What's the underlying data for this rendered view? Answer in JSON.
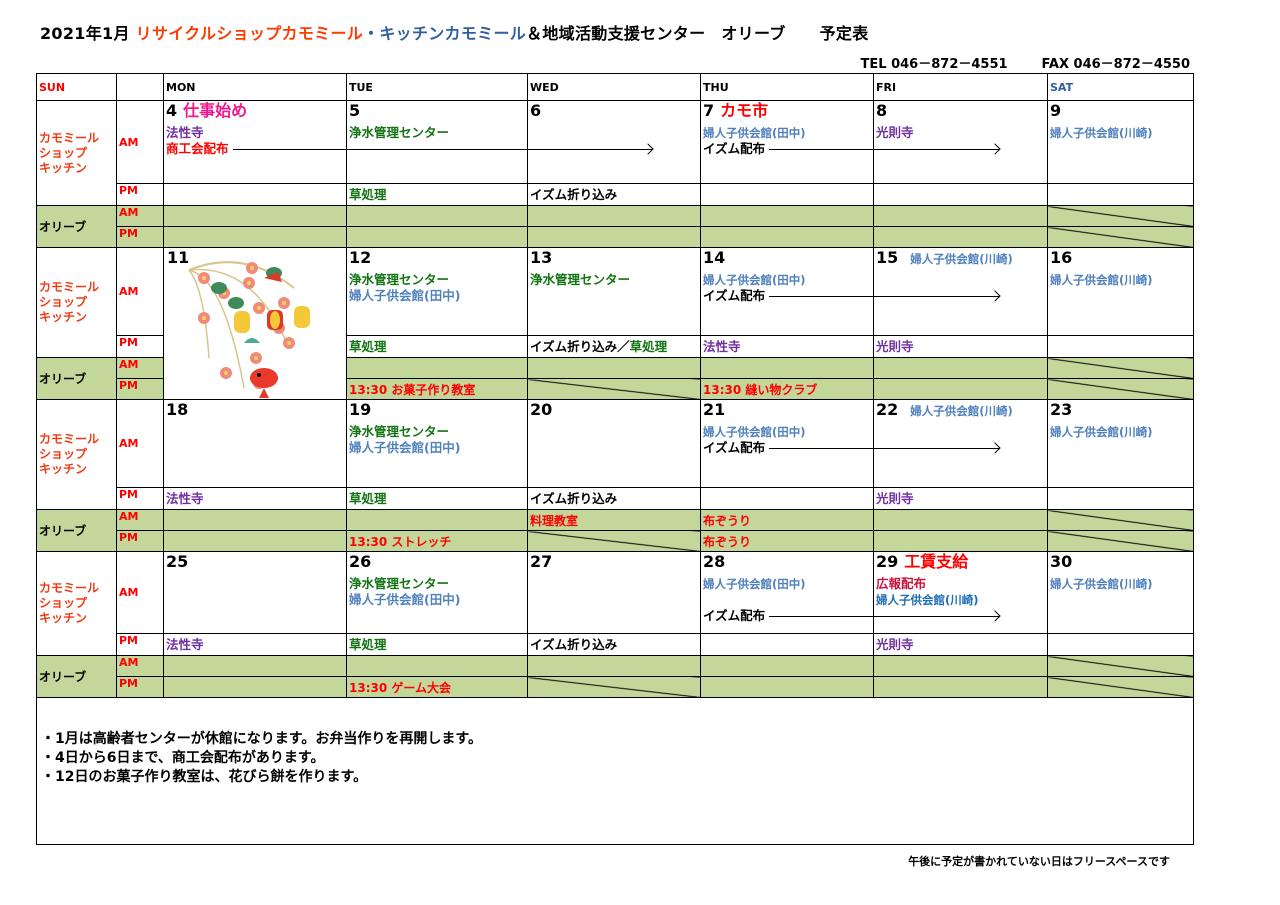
{
  "header": {
    "title_parts": [
      "2021年1月 ",
      "リサイクルショップカモミール",
      "・キッチンカモミール",
      "＆地域活動支援センター",
      "オリーブ",
      "予定表"
    ],
    "tel": "TEL  046－872－4551",
    "fax": "FAX  046－872－4550"
  },
  "colors": {
    "red": "#ff0000",
    "pink": "#f0198c",
    "green": "#137313",
    "blue": "#4f81bd",
    "blue_dark": "#1f6fb4",
    "purple": "#7030a0",
    "crimson": "#c8143c",
    "black": "#000000",
    "olive_bg": "#c4d79b",
    "sat_header": "#2f5f9f"
  },
  "columns": [
    "SUN",
    "",
    "MON",
    "TUE",
    "WED",
    "THU",
    "FRI",
    "SAT"
  ],
  "row_labels": {
    "shop": [
      "カモミール",
      "ショップ",
      "キッチン"
    ],
    "olive": "オリーブ",
    "am": "AM",
    "pm": "PM"
  },
  "decoration": "new-year-hanging-ornament-image",
  "weeks": [
    {
      "days": [
        {
          "date": "4",
          "title": "仕事始め",
          "title_color": "#f0198c",
          "title_size": "big",
          "am": [
            [
              {
                "t": "法性寺",
                "c": "#7030a0"
              }
            ],
            [
              {
                "t": "商工会配布",
                "c": "#ff0000",
                "arrow_until": "WED"
              }
            ]
          ],
          "pm": [],
          "olive_am": null,
          "olive_pm": null
        },
        {
          "date": "5",
          "am": [
            [
              {
                "t": "浄水管理センター",
                "c": "#137313"
              }
            ]
          ],
          "pm": [
            [
              {
                "t": "草処理",
                "c": "#137313"
              }
            ]
          ],
          "olive_am": null,
          "olive_pm": null
        },
        {
          "date": "6",
          "am": [],
          "pm": [
            [
              {
                "t": "イズム折り込み",
                "c": "#000000"
              }
            ]
          ],
          "olive_am": null,
          "olive_pm": null
        },
        {
          "date": "7",
          "title": "カモ市",
          "title_color": "#ff0000",
          "title_size": "big",
          "am": [
            [
              {
                "t": "婦人子供会館(田中)",
                "c": "#4f81bd",
                "small": true
              }
            ],
            [
              {
                "t": "イズム配布",
                "c": "#000000",
                "arrow_until": "FRI"
              }
            ]
          ],
          "pm": [],
          "olive_am": null,
          "olive_pm": null
        },
        {
          "date": "8",
          "am": [
            [
              {
                "t": "光則寺",
                "c": "#7030a0"
              }
            ]
          ],
          "pm": [],
          "olive_am": null,
          "olive_pm": null
        },
        {
          "date": "9",
          "am": [
            [
              {
                "t": "婦人子供会館(川崎)",
                "c": "#4f81bd",
                "small": true
              }
            ]
          ],
          "pm": [],
          "olive_am": null,
          "olive_pm": null,
          "olive_am_struck": true,
          "olive_pm_struck": true
        }
      ]
    },
    {
      "image_monday": true,
      "days": [
        {
          "date": "11",
          "am": [],
          "pm": []
        },
        {
          "date": "12",
          "am": [
            [
              {
                "t": "浄水管理センター",
                "c": "#137313"
              }
            ],
            [
              {
                "t": "婦人子供会館(田中)",
                "c": "#4f81bd"
              }
            ]
          ],
          "pm": [
            [
              {
                "t": "草処理",
                "c": "#137313"
              }
            ]
          ],
          "olive_am": null,
          "olive_pm": {
            "t": "13:30  お菓子作り教室",
            "c": "#ff0000"
          }
        },
        {
          "date": "13",
          "am": [
            [
              {
                "t": "浄水管理センター",
                "c": "#137313"
              }
            ]
          ],
          "pm": [
            [
              {
                "t": "イズム折り込み／",
                "c": "#000000"
              },
              {
                "t": "草処理",
                "c": "#137313"
              }
            ]
          ],
          "olive_am": null,
          "olive_pm": null,
          "olive_pm_struck": true
        },
        {
          "date": "14",
          "am": [
            [
              {
                "t": "婦人子供会館(田中)",
                "c": "#4f81bd",
                "small": true
              }
            ],
            [
              {
                "t": "イズム配布",
                "c": "#000000",
                "arrow_until": "FRI"
              }
            ]
          ],
          "pm": [
            [
              {
                "t": "法性寺",
                "c": "#7030a0"
              }
            ]
          ],
          "olive_am": null,
          "olive_pm": {
            "t": "13:30  縫い物クラブ",
            "c": "#ff0000"
          }
        },
        {
          "date": "15",
          "title": "婦人子供会館(川崎)",
          "title_color": "#4f81bd",
          "title_size": "small",
          "am": [],
          "pm": [
            [
              {
                "t": "光則寺",
                "c": "#7030a0"
              }
            ]
          ],
          "olive_am": null,
          "olive_pm": null
        },
        {
          "date": "16",
          "am": [
            [
              {
                "t": "婦人子供会館(川崎)",
                "c": "#4f81bd",
                "small": true
              }
            ]
          ],
          "pm": [],
          "olive_am": null,
          "olive_pm": null,
          "olive_am_struck": true,
          "olive_pm_struck": true
        }
      ]
    },
    {
      "days": [
        {
          "date": "18",
          "am": [],
          "pm": [
            [
              {
                "t": "法性寺",
                "c": "#7030a0"
              }
            ]
          ],
          "olive_am": null,
          "olive_pm": null
        },
        {
          "date": "19",
          "am": [
            [
              {
                "t": "浄水管理センター",
                "c": "#137313"
              }
            ],
            [
              {
                "t": "婦人子供会館(田中)",
                "c": "#4f81bd"
              }
            ]
          ],
          "pm": [
            [
              {
                "t": "草処理",
                "c": "#137313"
              }
            ]
          ],
          "olive_am": null,
          "olive_pm": {
            "t": "13:30  ストレッチ",
            "c": "#ff0000"
          }
        },
        {
          "date": "20",
          "am": [],
          "pm": [
            [
              {
                "t": "イズム折り込み",
                "c": "#000000"
              }
            ]
          ],
          "olive_am": {
            "t": "料理教室",
            "c": "#ff0000"
          },
          "olive_pm": null,
          "olive_pm_struck": true
        },
        {
          "date": "21",
          "am": [
            [
              {
                "t": "婦人子供会館(田中)",
                "c": "#4f81bd",
                "small": true
              }
            ],
            [
              {
                "t": "イズム配布",
                "c": "#000000",
                "arrow_until": "FRI"
              }
            ]
          ],
          "pm": [],
          "olive_am": {
            "t": "布ぞうり",
            "c": "#ff0000"
          },
          "olive_pm": {
            "t": "布ぞうり",
            "c": "#ff0000"
          }
        },
        {
          "date": "22",
          "title": "婦人子供会館(川崎)",
          "title_color": "#4f81bd",
          "title_size": "small",
          "am": [],
          "pm": [
            [
              {
                "t": "光則寺",
                "c": "#7030a0"
              }
            ]
          ],
          "olive_am": null,
          "olive_pm": null
        },
        {
          "date": "23",
          "am": [
            [
              {
                "t": "婦人子供会館(川崎)",
                "c": "#4f81bd",
                "small": true
              }
            ]
          ],
          "pm": [],
          "olive_am": null,
          "olive_pm": null,
          "olive_am_struck": true,
          "olive_pm_struck": true
        }
      ]
    },
    {
      "days": [
        {
          "date": "25",
          "am": [],
          "pm": [
            [
              {
                "t": "法性寺",
                "c": "#7030a0"
              }
            ]
          ],
          "olive_am": null,
          "olive_pm": null
        },
        {
          "date": "26",
          "am": [
            [
              {
                "t": "浄水管理センター",
                "c": "#137313"
              }
            ],
            [
              {
                "t": "婦人子供会館(田中)",
                "c": "#4f81bd"
              }
            ]
          ],
          "pm": [
            [
              {
                "t": "草処理",
                "c": "#137313"
              }
            ]
          ],
          "olive_am": null,
          "olive_pm": {
            "t": "13:30  ゲーム大会",
            "c": "#ff0000"
          }
        },
        {
          "date": "27",
          "am": [],
          "pm": [
            [
              {
                "t": "イズム折り込み",
                "c": "#000000"
              }
            ]
          ],
          "olive_am": null,
          "olive_pm": null,
          "olive_pm_struck": true
        },
        {
          "date": "28",
          "am": [
            [
              {
                "t": "婦人子供会館(田中)",
                "c": "#4f81bd",
                "small": true
              }
            ],
            [
              {
                "t": "",
                "c": "#000000"
              }
            ],
            [
              {
                "t": "イズム配布",
                "c": "#000000",
                "arrow_until": "FRI"
              }
            ]
          ],
          "pm": [],
          "olive_am": null,
          "olive_pm": null
        },
        {
          "date": "29",
          "title": "工賃支給",
          "title_color": "#ff0000",
          "title_size": "big",
          "am": [
            [
              {
                "t": "広報配布",
                "c": "#c8143c"
              }
            ],
            [
              {
                "t": "婦人子供会館(川崎)",
                "c": "#1f6fb4",
                "small": true
              }
            ]
          ],
          "pm": [
            [
              {
                "t": "光則寺",
                "c": "#7030a0"
              }
            ]
          ],
          "olive_am": null,
          "olive_pm": null
        },
        {
          "date": "30",
          "am": [
            [
              {
                "t": "婦人子供会館(川崎)",
                "c": "#4f81bd",
                "small": true
              }
            ]
          ],
          "pm": [],
          "olive_am": null,
          "olive_pm": null,
          "olive_am_struck": true,
          "olive_pm_struck": true
        }
      ]
    }
  ],
  "notes": [
    "・1月は高齢者センターが休館になります。お弁当作りを再開します。",
    "・4日から6日まで、商工会配布があります。",
    "・12日のお菓子作り教室は、花びら餅を作ります。"
  ],
  "footer": "午後に予定が書かれていない日はフリースペースです"
}
